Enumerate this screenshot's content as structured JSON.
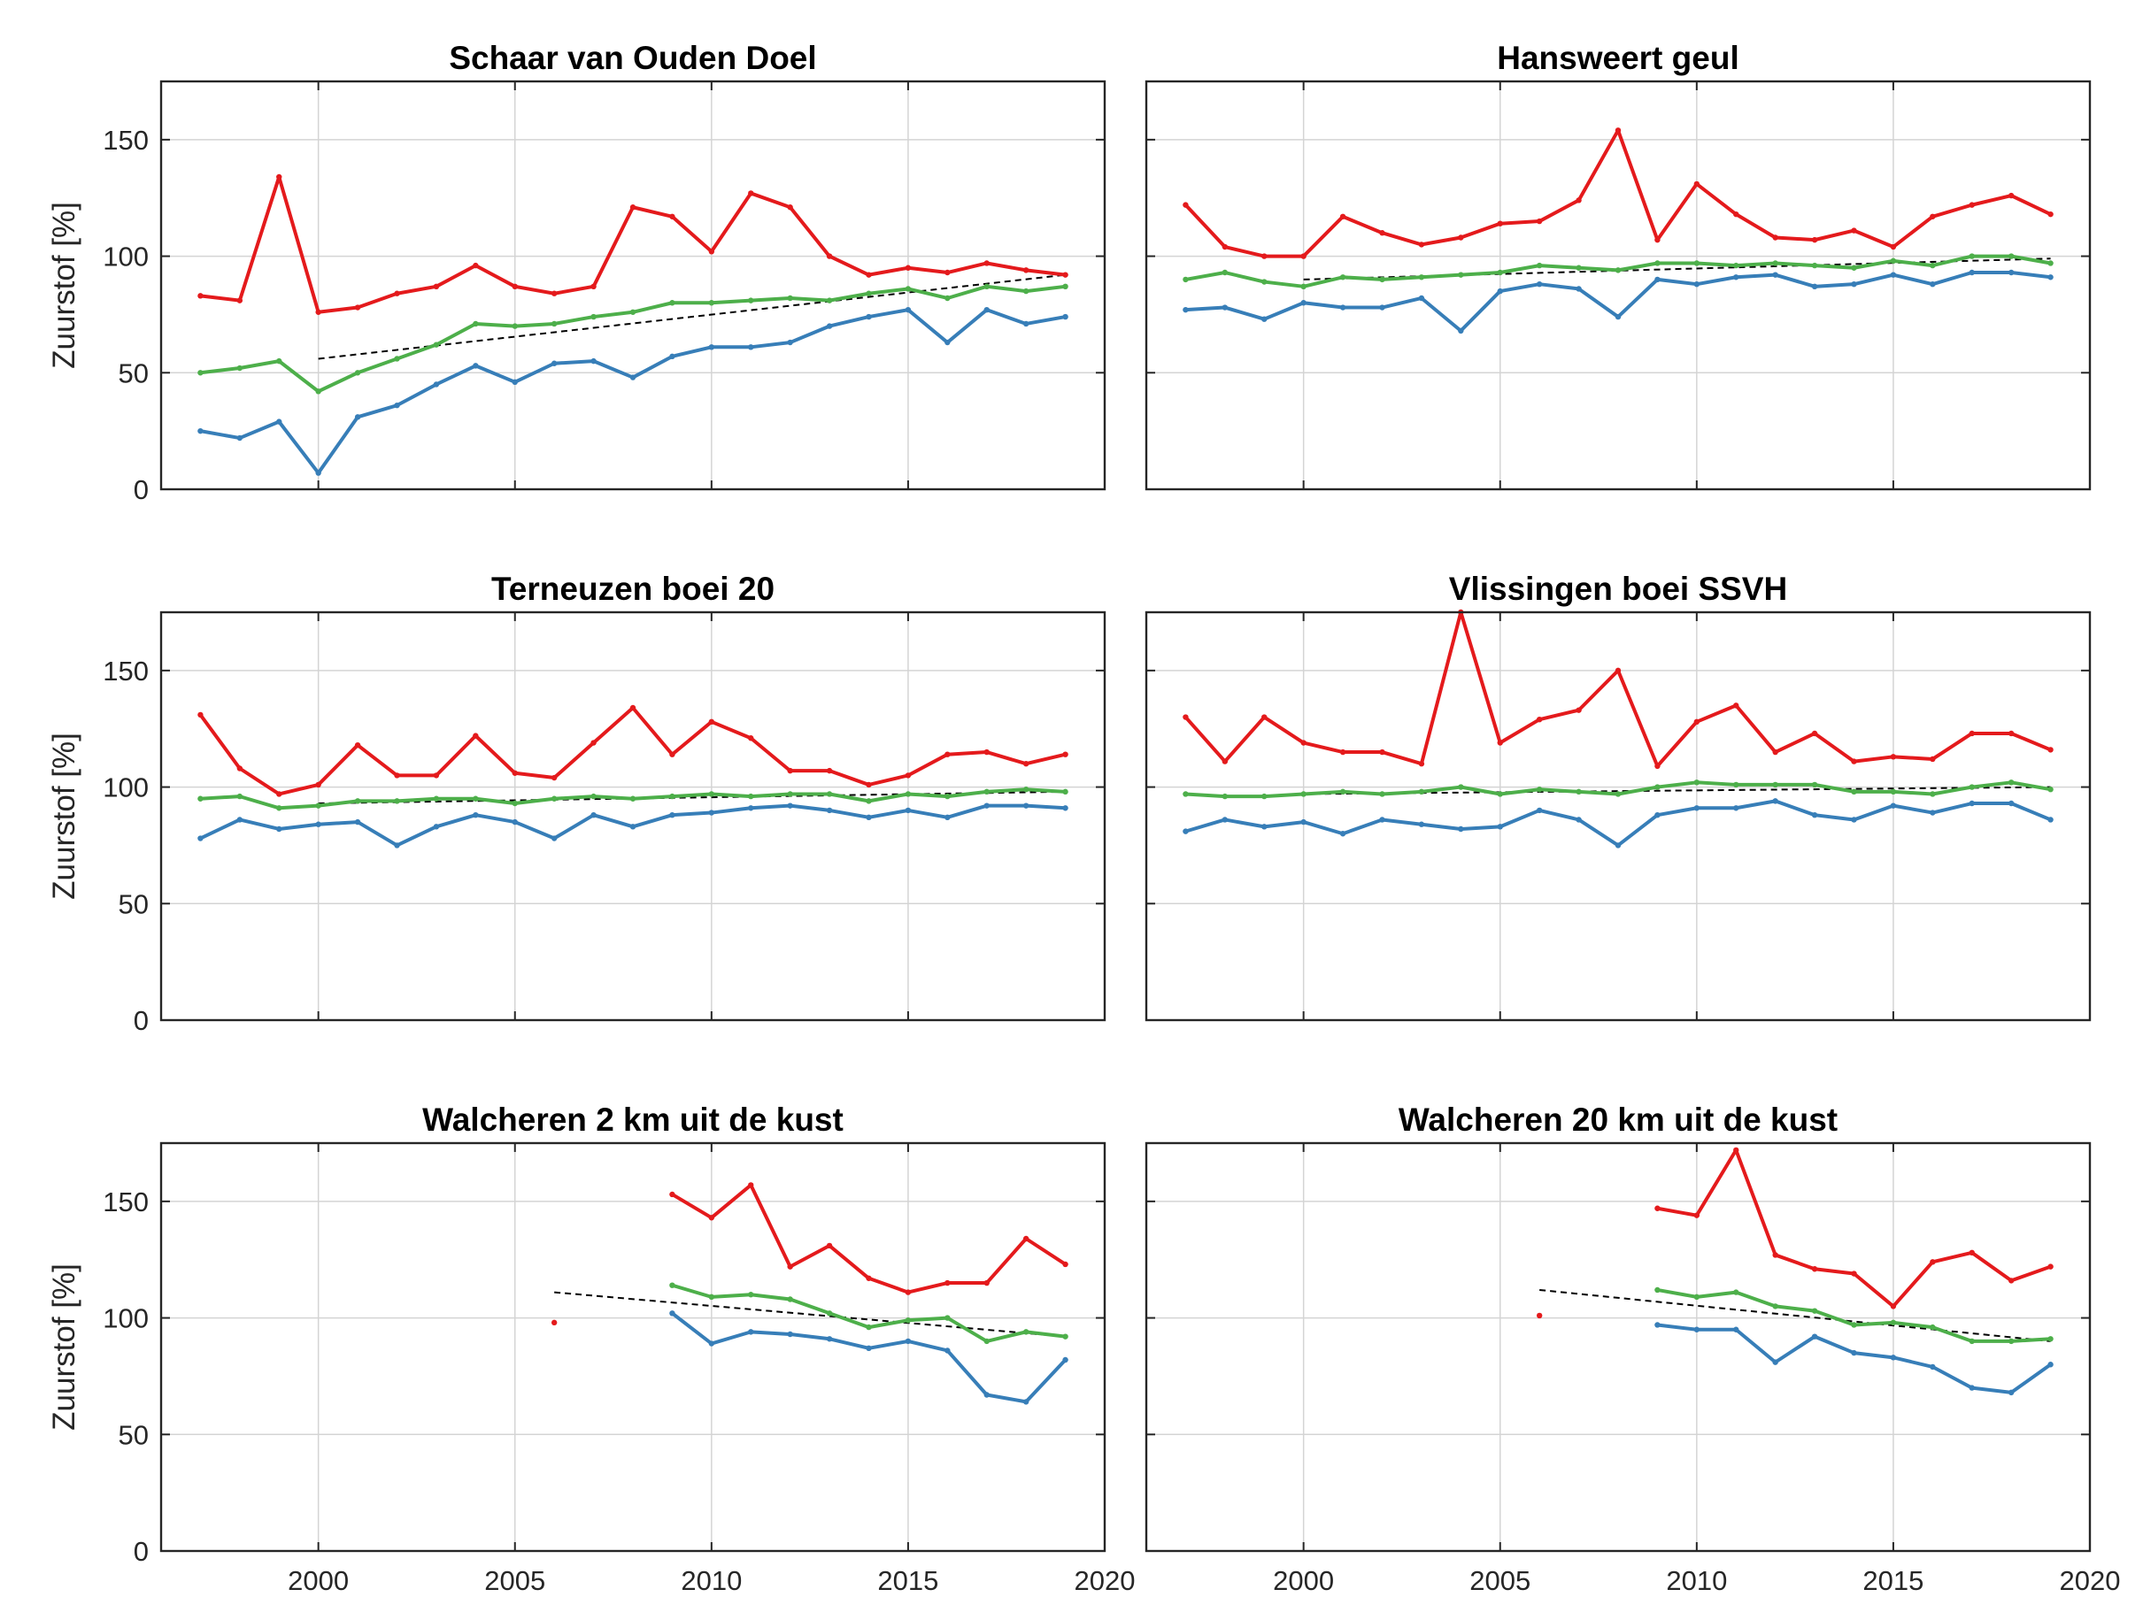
{
  "chart_data": [
    {
      "type": "line",
      "title": "Schaar van Ouden Doel",
      "xlim": [
        1996,
        2020
      ],
      "ylim": [
        0,
        175
      ],
      "xticks": [
        2000,
        2005,
        2010,
        2015,
        2020
      ],
      "yticks": [
        0,
        50,
        100,
        150
      ],
      "ylabel": "Zuurstof [%]",
      "grid": true,
      "series": [
        {
          "color": "#e41a1c",
          "x": [
            1997,
            1998,
            1999,
            2000,
            2001,
            2002,
            2003,
            2004,
            2005,
            2006,
            2007,
            2008,
            2009,
            2010,
            2011,
            2012,
            2013,
            2014,
            2015,
            2016,
            2017,
            2018,
            2019
          ],
          "y": [
            83,
            81,
            134,
            76,
            78,
            84,
            87,
            96,
            87,
            84,
            87,
            121,
            117,
            102,
            127,
            121,
            100,
            92,
            95,
            93,
            97,
            94,
            92
          ]
        },
        {
          "color": "#4daf4a",
          "x": [
            1997,
            1998,
            1999,
            2000,
            2001,
            2002,
            2003,
            2004,
            2005,
            2006,
            2007,
            2008,
            2009,
            2010,
            2011,
            2012,
            2013,
            2014,
            2015,
            2016,
            2017,
            2018,
            2019
          ],
          "y": [
            50,
            52,
            55,
            42,
            50,
            56,
            62,
            71,
            70,
            71,
            74,
            76,
            80,
            80,
            81,
            82,
            81,
            84,
            86,
            82,
            87,
            85,
            87
          ]
        },
        {
          "color": "#377eb8",
          "x": [
            1997,
            1998,
            1999,
            2000,
            2001,
            2002,
            2003,
            2004,
            2005,
            2006,
            2007,
            2008,
            2009,
            2010,
            2011,
            2012,
            2013,
            2014,
            2015,
            2016,
            2017,
            2018,
            2019
          ],
          "y": [
            25,
            22,
            29,
            7,
            31,
            36,
            45,
            53,
            46,
            54,
            55,
            48,
            57,
            61,
            61,
            63,
            70,
            74,
            77,
            63,
            77,
            71,
            74
          ]
        }
      ],
      "trend": {
        "x": [
          2000,
          2019
        ],
        "y": [
          56,
          92
        ]
      }
    },
    {
      "type": "line",
      "title": "Hansweert geul",
      "xlim": [
        1996,
        2020
      ],
      "ylim": [
        0,
        175
      ],
      "xticks": [
        2000,
        2005,
        2010,
        2015,
        2020
      ],
      "yticks": [
        0,
        50,
        100,
        150
      ],
      "ylabel": "",
      "grid": true,
      "series": [
        {
          "color": "#e41a1c",
          "x": [
            1997,
            1998,
            1999,
            2000,
            2001,
            2002,
            2003,
            2004,
            2005,
            2006,
            2007,
            2008,
            2009,
            2010,
            2011,
            2012,
            2013,
            2014,
            2015,
            2016,
            2017,
            2018,
            2019
          ],
          "y": [
            122,
            104,
            100,
            100,
            117,
            110,
            105,
            108,
            114,
            115,
            124,
            154,
            107,
            131,
            118,
            108,
            107,
            111,
            104,
            117,
            122,
            126,
            118
          ]
        },
        {
          "color": "#4daf4a",
          "x": [
            1997,
            1998,
            1999,
            2000,
            2001,
            2002,
            2003,
            2004,
            2005,
            2006,
            2007,
            2008,
            2009,
            2010,
            2011,
            2012,
            2013,
            2014,
            2015,
            2016,
            2017,
            2018,
            2019
          ],
          "y": [
            90,
            93,
            89,
            87,
            91,
            90,
            91,
            92,
            93,
            96,
            95,
            94,
            97,
            97,
            96,
            97,
            96,
            95,
            98,
            96,
            100,
            100,
            97
          ]
        },
        {
          "color": "#377eb8",
          "x": [
            1997,
            1998,
            1999,
            2000,
            2001,
            2002,
            2003,
            2004,
            2005,
            2006,
            2007,
            2008,
            2009,
            2010,
            2011,
            2012,
            2013,
            2014,
            2015,
            2016,
            2017,
            2018,
            2019
          ],
          "y": [
            77,
            78,
            73,
            80,
            78,
            78,
            82,
            68,
            85,
            88,
            86,
            74,
            90,
            88,
            91,
            92,
            87,
            88,
            92,
            88,
            93,
            93,
            91
          ]
        }
      ],
      "trend": {
        "x": [
          2000,
          2019
        ],
        "y": [
          90,
          99
        ]
      }
    },
    {
      "type": "line",
      "title": "Terneuzen boei 20",
      "xlim": [
        1996,
        2020
      ],
      "ylim": [
        0,
        175
      ],
      "xticks": [
        2000,
        2005,
        2010,
        2015,
        2020
      ],
      "yticks": [
        0,
        50,
        100,
        150
      ],
      "ylabel": "Zuurstof [%]",
      "grid": true,
      "series": [
        {
          "color": "#e41a1c",
          "x": [
            1997,
            1998,
            1999,
            2000,
            2001,
            2002,
            2003,
            2004,
            2005,
            2006,
            2007,
            2008,
            2009,
            2010,
            2011,
            2012,
            2013,
            2014,
            2015,
            2016,
            2017,
            2018,
            2019
          ],
          "y": [
            131,
            108,
            97,
            101,
            118,
            105,
            105,
            122,
            106,
            104,
            119,
            134,
            114,
            128,
            121,
            107,
            107,
            101,
            105,
            114,
            115,
            110,
            114
          ]
        },
        {
          "color": "#4daf4a",
          "x": [
            1997,
            1998,
            1999,
            2000,
            2001,
            2002,
            2003,
            2004,
            2005,
            2006,
            2007,
            2008,
            2009,
            2010,
            2011,
            2012,
            2013,
            2014,
            2015,
            2016,
            2017,
            2018,
            2019
          ],
          "y": [
            95,
            96,
            91,
            92,
            94,
            94,
            95,
            95,
            93,
            95,
            96,
            95,
            96,
            97,
            96,
            97,
            97,
            94,
            97,
            96,
            98,
            99,
            98
          ]
        },
        {
          "color": "#377eb8",
          "x": [
            1997,
            1998,
            1999,
            2000,
            2001,
            2002,
            2003,
            2004,
            2005,
            2006,
            2007,
            2008,
            2009,
            2010,
            2011,
            2012,
            2013,
            2014,
            2015,
            2016,
            2017,
            2018,
            2019
          ],
          "y": [
            78,
            86,
            82,
            84,
            85,
            75,
            83,
            88,
            85,
            78,
            88,
            83,
            88,
            89,
            91,
            92,
            90,
            87,
            90,
            87,
            92,
            92,
            91
          ]
        }
      ],
      "trend": {
        "x": [
          2000,
          2019
        ],
        "y": [
          93,
          98
        ]
      }
    },
    {
      "type": "line",
      "title": "Vlissingen boei SSVH",
      "xlim": [
        1996,
        2020
      ],
      "ylim": [
        0,
        175
      ],
      "xticks": [
        2000,
        2005,
        2010,
        2015,
        2020
      ],
      "yticks": [
        0,
        50,
        100,
        150
      ],
      "ylabel": "",
      "grid": true,
      "series": [
        {
          "color": "#e41a1c",
          "x": [
            1997,
            1998,
            1999,
            2000,
            2001,
            2002,
            2003,
            2004,
            2005,
            2006,
            2007,
            2008,
            2009,
            2010,
            2011,
            2012,
            2013,
            2014,
            2015,
            2016,
            2017,
            2018,
            2019
          ],
          "y": [
            130,
            111,
            130,
            119,
            115,
            115,
            110,
            175,
            119,
            129,
            133,
            150,
            109,
            128,
            135,
            115,
            123,
            111,
            113,
            112,
            123,
            123,
            116
          ]
        },
        {
          "color": "#4daf4a",
          "x": [
            1997,
            1998,
            1999,
            2000,
            2001,
            2002,
            2003,
            2004,
            2005,
            2006,
            2007,
            2008,
            2009,
            2010,
            2011,
            2012,
            2013,
            2014,
            2015,
            2016,
            2017,
            2018,
            2019
          ],
          "y": [
            97,
            96,
            96,
            97,
            98,
            97,
            98,
            100,
            97,
            99,
            98,
            97,
            100,
            102,
            101,
            101,
            101,
            98,
            98,
            97,
            100,
            102,
            99
          ]
        },
        {
          "color": "#377eb8",
          "x": [
            1997,
            1998,
            1999,
            2000,
            2001,
            2002,
            2003,
            2004,
            2005,
            2006,
            2007,
            2008,
            2009,
            2010,
            2011,
            2012,
            2013,
            2014,
            2015,
            2016,
            2017,
            2018,
            2019
          ],
          "y": [
            81,
            86,
            83,
            85,
            80,
            86,
            84,
            82,
            83,
            90,
            86,
            75,
            88,
            91,
            91,
            94,
            88,
            86,
            92,
            89,
            93,
            93,
            86
          ]
        }
      ],
      "trend": {
        "x": [
          2000,
          2019
        ],
        "y": [
          97,
          100
        ]
      }
    },
    {
      "type": "line",
      "title": "Walcheren 2 km uit de kust",
      "xlim": [
        1996,
        2020
      ],
      "ylim": [
        0,
        175
      ],
      "xticks": [
        2000,
        2005,
        2010,
        2015,
        2020
      ],
      "yticks": [
        0,
        50,
        100,
        150
      ],
      "ylabel": "Zuurstof [%]",
      "grid": true,
      "series": [
        {
          "color": "#e41a1c",
          "x": [
            2006,
            2009,
            2010,
            2011,
            2012,
            2013,
            2014,
            2015,
            2016,
            2017,
            2018,
            2019
          ],
          "y": [
            98,
            153,
            143,
            157,
            122,
            131,
            117,
            111,
            115,
            115,
            134,
            123
          ],
          "segments": [
            [
              2006
            ],
            [
              2009,
              2010,
              2011,
              2012,
              2013,
              2014,
              2015,
              2016,
              2017,
              2018,
              2019
            ]
          ]
        },
        {
          "color": "#4daf4a",
          "x": [
            2009,
            2010,
            2011,
            2012,
            2013,
            2014,
            2015,
            2016,
            2017,
            2018,
            2019
          ],
          "y": [
            114,
            109,
            110,
            108,
            102,
            96,
            99,
            100,
            90,
            94,
            92
          ]
        },
        {
          "color": "#377eb8",
          "x": [
            2009,
            2010,
            2011,
            2012,
            2013,
            2014,
            2015,
            2016,
            2017,
            2018,
            2019
          ],
          "y": [
            102,
            89,
            94,
            93,
            91,
            87,
            90,
            86,
            67,
            64,
            82
          ]
        }
      ],
      "trend": {
        "x": [
          2006,
          2019
        ],
        "y": [
          111,
          92
        ]
      }
    },
    {
      "type": "line",
      "title": "Walcheren 20 km uit de kust",
      "xlim": [
        1996,
        2020
      ],
      "ylim": [
        0,
        175
      ],
      "xticks": [
        2000,
        2005,
        2010,
        2015,
        2020
      ],
      "yticks": [
        0,
        50,
        100,
        150
      ],
      "ylabel": "",
      "grid": true,
      "series": [
        {
          "color": "#e41a1c",
          "x": [
            2006,
            2009,
            2010,
            2011,
            2012,
            2013,
            2014,
            2015,
            2016,
            2017,
            2018,
            2019
          ],
          "y": [
            101,
            147,
            144,
            172,
            127,
            121,
            119,
            105,
            124,
            128,
            116,
            122
          ],
          "segments": [
            [
              2006
            ],
            [
              2009,
              2010,
              2011,
              2012,
              2013,
              2014,
              2015,
              2016,
              2017,
              2018,
              2019
            ]
          ]
        },
        {
          "color": "#4daf4a",
          "x": [
            2009,
            2010,
            2011,
            2012,
            2013,
            2014,
            2015,
            2016,
            2017,
            2018,
            2019
          ],
          "y": [
            112,
            109,
            111,
            105,
            103,
            97,
            98,
            96,
            90,
            90,
            91
          ]
        },
        {
          "color": "#377eb8",
          "x": [
            2009,
            2010,
            2011,
            2012,
            2013,
            2014,
            2015,
            2016,
            2017,
            2018,
            2019
          ],
          "y": [
            97,
            95,
            95,
            81,
            92,
            85,
            83,
            79,
            70,
            68,
            80
          ]
        }
      ],
      "trend": {
        "x": [
          2006,
          2019
        ],
        "y": [
          112,
          90
        ]
      }
    }
  ]
}
